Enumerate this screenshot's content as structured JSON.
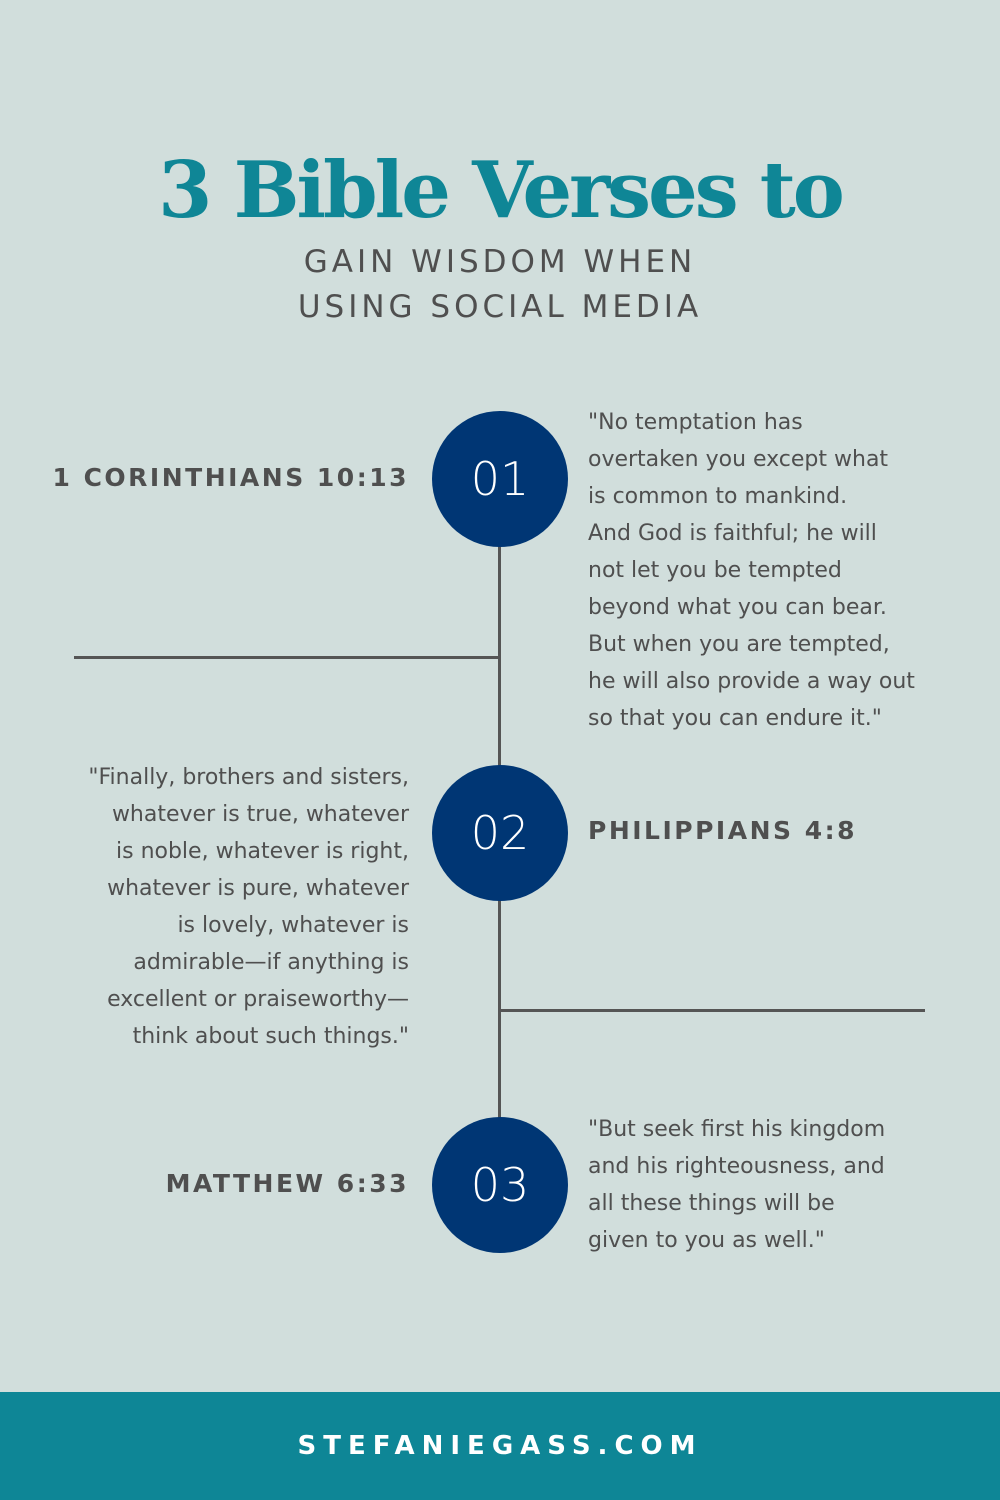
{
  "title": "3 Bible Verses to",
  "subtitle": [
    "GAIN WISDOM WHEN",
    "USING SOCIAL MEDIA"
  ],
  "colors": {
    "background": "#d1dedc",
    "title": "#0f8696",
    "circle": "#003674",
    "text": "#4f4f4f",
    "footer": "#0e8696"
  },
  "verses": [
    {
      "number": "01",
      "reference": "1 CORINTHIANS 10:13",
      "quote": [
        "\"No temptation has",
        "overtaken you except what",
        "is common to mankind.",
        "And God is faithful; he will",
        "not let you be tempted",
        "beyond what you can bear.",
        "But when you are tempted,",
        "he will also provide a way out",
        "so that you can endure it.\""
      ]
    },
    {
      "number": "02",
      "reference": "PHILIPPIANS 4:8",
      "quote": [
        "\"Finally, brothers and sisters,",
        "whatever is true, whatever",
        "is noble, whatever is right,",
        "whatever is pure, whatever",
        "is lovely, whatever is",
        "admirable—if anything is",
        "excellent or praiseworthy—",
        "think about such things.\""
      ]
    },
    {
      "number": "03",
      "reference": "MATTHEW 6:33",
      "quote": [
        "\"But seek first his kingdom",
        "and his righteousness, and",
        "all these things will be",
        "given to you as well.\""
      ]
    }
  ],
  "footer": "STEFANIEGASS.COM"
}
